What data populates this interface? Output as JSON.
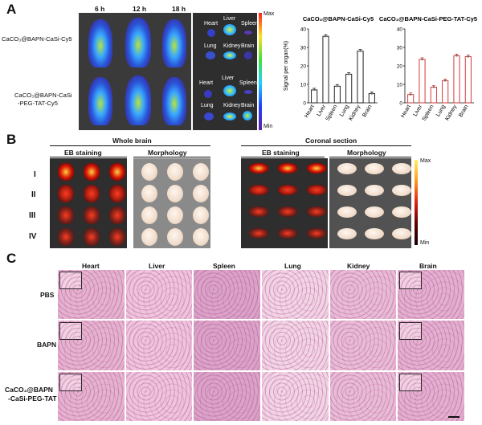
{
  "panels": {
    "a": "A",
    "b": "B",
    "c": "C"
  },
  "panel_a": {
    "time_labels": [
      "6 h",
      "12 h",
      "18 h"
    ],
    "row_labels": [
      "CaCO₃@BAPN-CaSi-Cy5",
      "CaCO₃@BAPN-CaSi",
      "-PEG-TAT-Cy5"
    ],
    "organ_labels_row1": [
      "Heart",
      "Liver",
      "Spleen",
      "Lung",
      "Kidney",
      "Brain"
    ],
    "organ_labels_row2": [
      "Heart",
      "Liver",
      "Spleen",
      "Lung",
      "Kidney",
      "Brain"
    ],
    "colorbar_max": "Max",
    "colorbar_min": "Min"
  },
  "panel_b": {
    "group_whole": "Whole brain",
    "group_coronal": "Coronal section",
    "sub_eb": "EB staining",
    "sub_morph": "Morphology",
    "row_labels": [
      "I",
      "II",
      "III",
      "IV"
    ],
    "colorbar_max": "Max",
    "colorbar_min": "Min"
  },
  "panel_c": {
    "columns": [
      "Heart",
      "Liver",
      "Spleen",
      "Lung",
      "Kidney",
      "Brain"
    ],
    "rows": [
      "PBS",
      "BAPN",
      "CaCO₃@BAPN",
      "-CaSi-PEG-TAT"
    ]
  },
  "chart_data": [
    {
      "type": "bar",
      "title": "CaCO₃@BAPN-CaSi-Cy5",
      "ylabel": "Signal per organ(%)",
      "categories": [
        "Heart",
        "Liver",
        "Spleen",
        "Lung",
        "Kidney",
        "Brain"
      ],
      "values": [
        7,
        36,
        9,
        15.5,
        28,
        5
      ],
      "ylim": [
        0,
        40
      ],
      "yticks": [
        "0",
        "10",
        "20",
        "30",
        "40"
      ],
      "color": "#222222"
    },
    {
      "type": "bar",
      "title": "CaCO₃@BAPN-CaSi-PEG-TAT-Cy5",
      "ylabel": "",
      "categories": [
        "Heart",
        "Liver",
        "Spleen",
        "Lung",
        "Kidney",
        "Brain"
      ],
      "values": [
        4.5,
        23.5,
        8.5,
        12,
        25.5,
        25
      ],
      "ylim": [
        0,
        40
      ],
      "yticks": [
        "0",
        "10",
        "20",
        "30",
        "40"
      ],
      "color": "#d63a3a"
    }
  ]
}
